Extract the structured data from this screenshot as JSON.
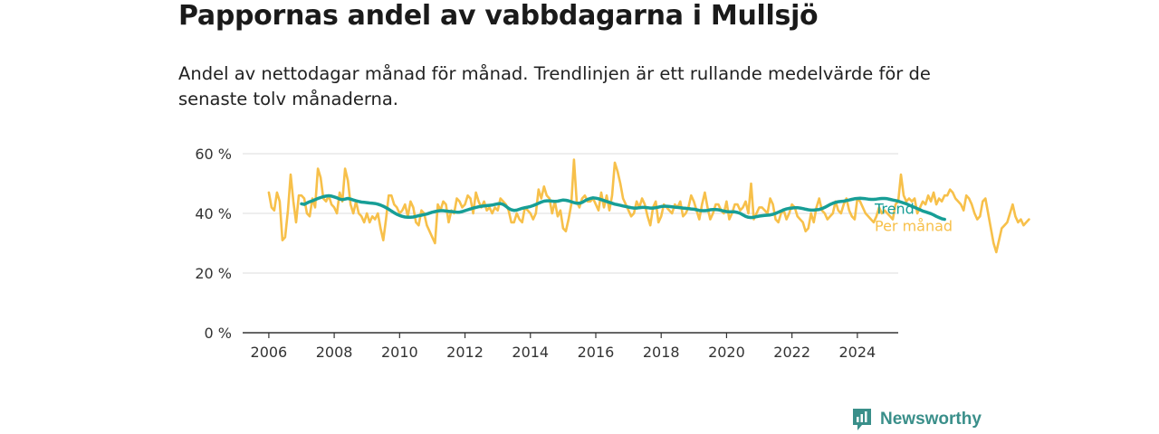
{
  "title": "Pappornas andel av vabbdagarna i Mullsjö",
  "subtitle": "Andel av nettodagar månad för månad. Trendlinjen är ett rullande medelvärde för de senaste tolv månaderna.",
  "brand": {
    "name": "Newsworthy",
    "icon": "newsworthy-logo-icon",
    "color": "#3a8f8a"
  },
  "chart_data": {
    "type": "line",
    "x_unit": "year",
    "xlim": [
      2005.2,
      2025.25
    ],
    "ylim": [
      0,
      60
    ],
    "grid": true,
    "y_ticks": [
      {
        "value": 0,
        "label": "0 %"
      },
      {
        "value": 20,
        "label": "20 %"
      },
      {
        "value": 40,
        "label": "40 %"
      },
      {
        "value": 60,
        "label": "60 %"
      }
    ],
    "x_ticks": [
      {
        "value": 2006,
        "label": "2006"
      },
      {
        "value": 2008,
        "label": "2008"
      },
      {
        "value": 2010,
        "label": "2010"
      },
      {
        "value": 2012,
        "label": "2012"
      },
      {
        "value": 2014,
        "label": "2014"
      },
      {
        "value": 2016,
        "label": "2016"
      },
      {
        "value": 2018,
        "label": "2018"
      },
      {
        "value": 2020,
        "label": "2020"
      },
      {
        "value": 2022,
        "label": "2022"
      },
      {
        "value": 2024,
        "label": "2024"
      }
    ],
    "series": [
      {
        "name": "Per månad",
        "color": "#f7c04a",
        "start": 2006.0,
        "step": 0.0833333,
        "values": [
          47,
          42,
          41,
          47,
          44,
          31,
          32,
          41,
          53,
          44,
          37,
          46,
          46,
          45,
          40,
          39,
          45,
          42,
          55,
          52,
          45,
          44,
          46,
          43,
          42,
          40,
          47,
          44,
          55,
          51,
          43,
          40,
          44,
          40,
          39,
          37,
          40,
          37,
          39,
          38,
          40,
          35,
          31,
          38,
          46,
          46,
          43,
          42,
          40,
          41,
          43,
          39,
          44,
          42,
          37,
          36,
          41,
          40,
          36,
          34,
          32,
          30,
          43,
          41,
          44,
          43,
          37,
          41,
          40,
          45,
          44,
          42,
          43,
          46,
          45,
          40,
          47,
          44,
          42,
          44,
          41,
          42,
          40,
          42,
          41,
          45,
          44,
          43,
          41,
          37,
          37,
          40,
          38,
          37,
          42,
          41,
          40,
          38,
          40,
          48,
          45,
          49,
          46,
          45,
          40,
          44,
          39,
          41,
          35,
          34,
          38,
          43,
          58,
          44,
          42,
          45,
          46,
          44,
          44,
          45,
          43,
          41,
          47,
          42,
          46,
          41,
          46,
          57,
          54,
          50,
          45,
          43,
          41,
          39,
          40,
          44,
          42,
          45,
          43,
          39,
          36,
          42,
          44,
          37,
          39,
          43,
          42,
          41,
          40,
          43,
          42,
          44,
          39,
          40,
          42,
          46,
          44,
          41,
          38,
          43,
          47,
          42,
          38,
          40,
          43,
          43,
          41,
          40,
          44,
          38,
          40,
          43,
          43,
          41,
          42,
          44,
          40,
          50,
          38,
          40,
          42,
          42,
          41,
          40,
          45,
          43,
          38,
          37,
          40,
          41,
          38,
          40,
          43,
          42,
          39,
          38,
          37,
          34,
          35,
          40,
          37,
          42,
          45,
          41,
          40,
          38,
          39,
          40,
          44,
          41,
          40,
          43,
          45,
          41,
          39,
          38,
          45,
          44,
          42,
          40,
          39,
          38,
          37,
          39,
          42,
          40,
          41,
          40,
          39,
          38,
          43,
          44,
          53,
          46,
          44,
          45,
          44,
          45,
          40,
          42,
          44,
          43,
          46,
          44,
          47,
          43,
          45,
          44,
          46,
          46,
          48,
          47,
          45,
          44,
          43,
          41,
          46,
          45,
          43,
          40,
          38,
          39,
          44,
          45,
          40,
          35,
          30,
          27,
          31,
          35,
          36,
          37,
          40,
          43,
          39,
          37,
          38,
          36,
          37,
          38
        ]
      },
      {
        "name": "Trend",
        "color": "#179e96",
        "start": 2007.0,
        "step": 0.0833333,
        "values": [
          43.2,
          43.0,
          43.5,
          43.9,
          44.2,
          44.6,
          45.0,
          45.3,
          45.6,
          45.8,
          45.9,
          45.8,
          45.5,
          45.2,
          44.8,
          44.6,
          44.8,
          45.0,
          44.8,
          44.5,
          44.2,
          44.0,
          43.8,
          43.7,
          43.6,
          43.5,
          43.4,
          43.3,
          43.1,
          42.8,
          42.4,
          41.9,
          41.4,
          40.8,
          40.2,
          39.7,
          39.3,
          39.0,
          38.8,
          38.7,
          38.7,
          38.8,
          39.0,
          39.2,
          39.4,
          39.6,
          39.8,
          40.1,
          40.4,
          40.6,
          40.8,
          40.9,
          40.9,
          40.8,
          40.7,
          40.6,
          40.5,
          40.4,
          40.4,
          40.6,
          40.9,
          41.2,
          41.5,
          41.8,
          42.0,
          42.2,
          42.4,
          42.5,
          42.6,
          42.7,
          42.8,
          43.0,
          43.2,
          43.3,
          43.0,
          42.4,
          41.7,
          41.2,
          41.0,
          41.1,
          41.4,
          41.7,
          41.9,
          42.1,
          42.3,
          42.6,
          43.0,
          43.4,
          43.8,
          44.1,
          44.2,
          44.2,
          44.1,
          44.0,
          44.1,
          44.3,
          44.5,
          44.4,
          44.2,
          43.9,
          43.6,
          43.4,
          43.4,
          43.7,
          44.2,
          44.7,
          45.0,
          45.2,
          45.1,
          44.9,
          44.6,
          44.3,
          44.0,
          43.7,
          43.4,
          43.1,
          42.9,
          42.7,
          42.5,
          42.3,
          42.1,
          41.9,
          41.8,
          41.8,
          41.9,
          42.0,
          42.0,
          41.9,
          41.8,
          41.8,
          41.9,
          42.1,
          42.3,
          42.4,
          42.4,
          42.3,
          42.2,
          42.1,
          42.0,
          41.9,
          41.8,
          41.7,
          41.6,
          41.5,
          41.4,
          41.2,
          41.0,
          40.9,
          40.9,
          41.0,
          41.2,
          41.3,
          41.3,
          41.2,
          41.0,
          40.8,
          40.6,
          40.5,
          40.5,
          40.5,
          40.3,
          40.0,
          39.5,
          39.0,
          38.7,
          38.6,
          38.7,
          38.9,
          39.1,
          39.2,
          39.3,
          39.4,
          39.5,
          39.7,
          40.0,
          40.4,
          40.8,
          41.2,
          41.5,
          41.7,
          41.8,
          41.9,
          41.9,
          41.8,
          41.6,
          41.4,
          41.2,
          41.1,
          41.1,
          41.2,
          41.3,
          41.6,
          42.0,
          42.5,
          43.0,
          43.4,
          43.7,
          43.9,
          44.0,
          44.1,
          44.3,
          44.5,
          44.7,
          44.9,
          45.0,
          45.1,
          45.0,
          44.9,
          44.8,
          44.7,
          44.7,
          44.8,
          44.9,
          45.0,
          45.0,
          44.9,
          44.7,
          44.5,
          44.3,
          44.1,
          43.8,
          43.5,
          43.2,
          42.8,
          42.4,
          42.0,
          41.6,
          41.2,
          40.8,
          40.5,
          40.2,
          39.9,
          39.5,
          39.0,
          38.6,
          38.2,
          38.0
        ]
      }
    ]
  }
}
